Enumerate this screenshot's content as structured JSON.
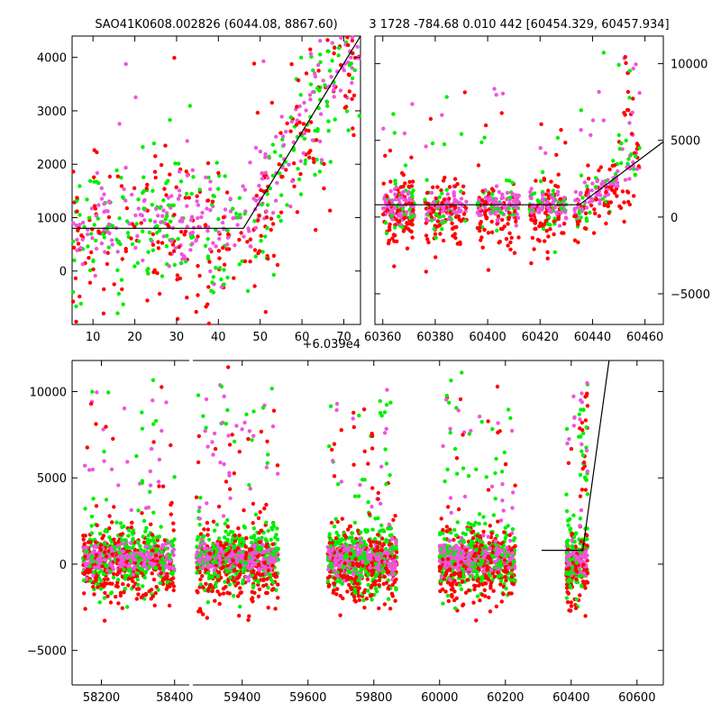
{
  "titles": {
    "left": "SAO41K0608.002826 (6044.08, 8867.60)",
    "right": "3 1728 -784.68 0.010 442 [60454.329, 60457.934]"
  },
  "colors": {
    "green": "#00ee00",
    "red": "#ff0000",
    "pink": "#ee55dd",
    "line": "#000000"
  },
  "chart_data": [
    {
      "id": "zoom-left",
      "type": "scatter",
      "x_offset_label": "+6.039e4",
      "xlim": [
        5,
        74
      ],
      "ylim": [
        -1000,
        4400
      ],
      "xticks": [
        10,
        20,
        30,
        40,
        50,
        60,
        70
      ],
      "yticks": [
        0,
        1000,
        2000,
        3000,
        4000
      ],
      "model_line": {
        "x": [
          5,
          46,
          74
        ],
        "y": [
          800,
          800,
          4400
        ]
      }
    },
    {
      "id": "zoom-right",
      "type": "scatter",
      "xlim": [
        60357,
        60467
      ],
      "ylim": [
        -7000,
        11800
      ],
      "xticks": [
        60360,
        60380,
        60400,
        60420,
        60440,
        60460
      ],
      "yticks": [
        -5000,
        0,
        5000,
        10000
      ],
      "model_line": {
        "x": [
          60357,
          60435,
          60467
        ],
        "y": [
          800,
          800,
          4900
        ]
      }
    },
    {
      "id": "full",
      "type": "scatter",
      "segments": [
        {
          "xlim": [
            58120,
            58440
          ],
          "xticks": [
            58200,
            58400
          ]
        },
        {
          "xlim": [
            59250,
            60680
          ],
          "xticks": [
            59400,
            59600,
            59800,
            60000,
            60200,
            60400,
            60600
          ]
        }
      ],
      "ylim": [
        -7000,
        11800
      ],
      "yticks": [
        -5000,
        0,
        5000,
        10000
      ],
      "model_line": {
        "x": [
          60310,
          60435,
          60515
        ],
        "y": [
          800,
          800,
          11800
        ]
      }
    }
  ]
}
